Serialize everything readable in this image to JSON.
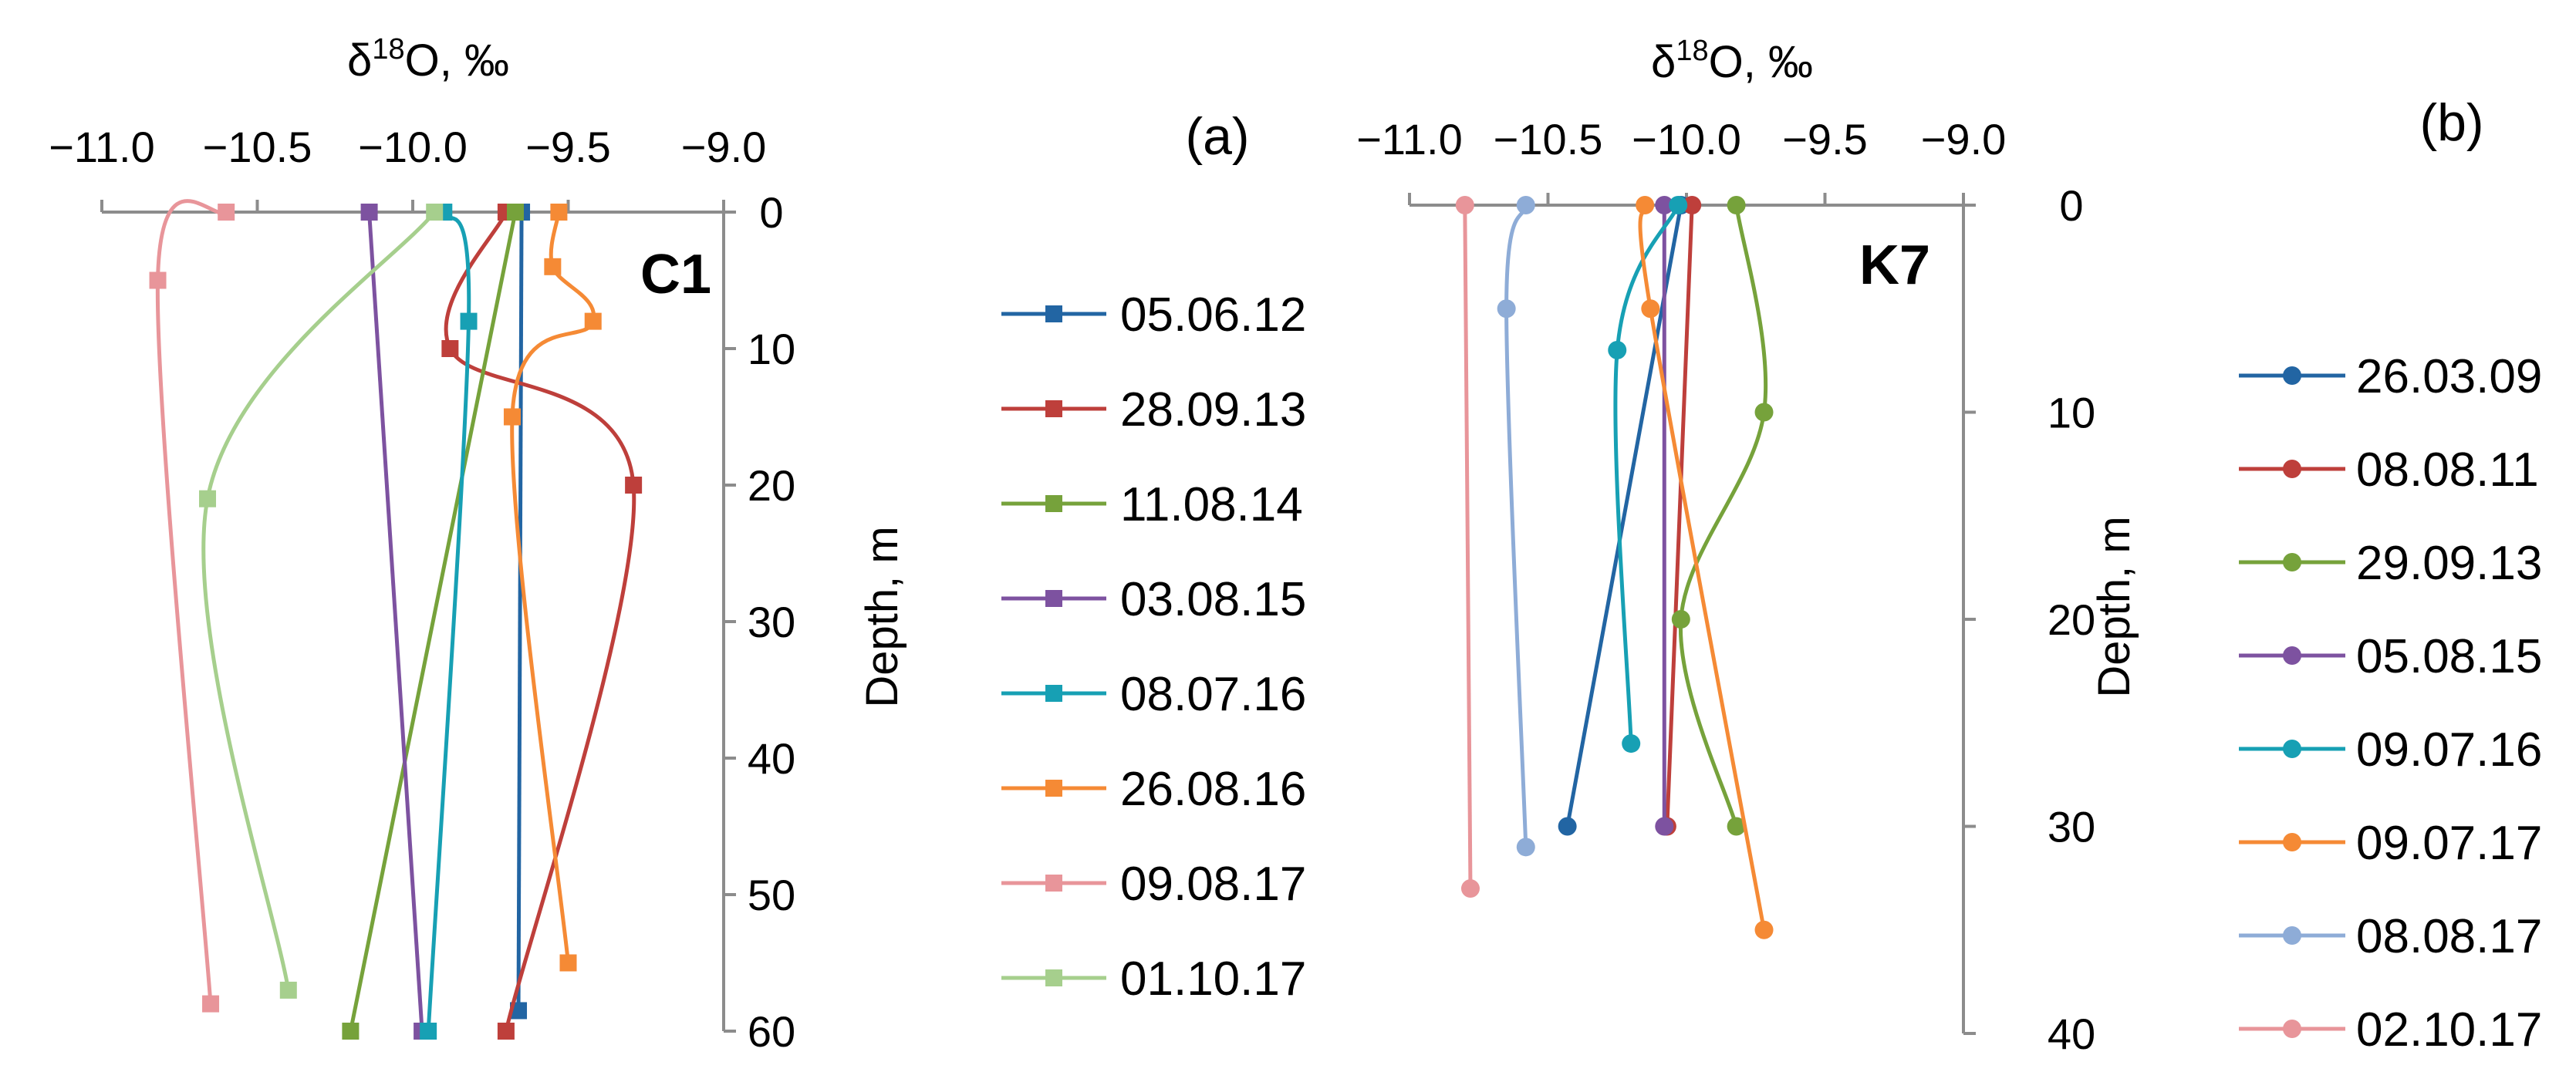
{
  "chart_data": [
    {
      "type": "line",
      "panel_label": "(a)",
      "site_label": "C1",
      "xlabel_base": "δ",
      "xlabel_sup": "18",
      "xlabel_rest": "O, ‰",
      "ylabel": "Depth, m",
      "xlim": [
        -11.0,
        -9.0
      ],
      "ylim": [
        0,
        60
      ],
      "x_ticks": [
        "−11.0",
        "−10.5",
        "−10.0",
        "−9.5",
        "−9.0"
      ],
      "y_ticks": [
        "0",
        "10",
        "20",
        "30",
        "40",
        "50",
        "60"
      ],
      "marker": "square",
      "series": [
        {
          "name": "05.06.12",
          "color": "#2265a3",
          "points": [
            [
              -9.65,
              0
            ],
            [
              -9.66,
              58.5
            ]
          ]
        },
        {
          "name": "28.09.13",
          "color": "#be3f3b",
          "points": [
            [
              -9.7,
              0
            ],
            [
              -9.88,
              10
            ],
            [
              -9.29,
              20
            ],
            [
              -9.7,
              60
            ]
          ]
        },
        {
          "name": "11.08.14",
          "color": "#76a23b",
          "points": [
            [
              -9.67,
              0
            ],
            [
              -10.2,
              60
            ]
          ]
        },
        {
          "name": "03.08.15",
          "color": "#7d52a0",
          "points": [
            [
              -10.14,
              0
            ],
            [
              -9.97,
              60
            ]
          ]
        },
        {
          "name": "08.07.16",
          "color": "#17a0b4",
          "points": [
            [
              -9.9,
              0
            ],
            [
              -9.82,
              8
            ],
            [
              -9.95,
              60
            ]
          ]
        },
        {
          "name": "26.08.16",
          "color": "#f58a35",
          "points": [
            [
              -9.53,
              0
            ],
            [
              -9.55,
              4
            ],
            [
              -9.42,
              8
            ],
            [
              -9.68,
              15
            ],
            [
              -9.5,
              55
            ]
          ]
        },
        {
          "name": "09.08.17",
          "color": "#e8959a",
          "points": [
            [
              -10.6,
              0
            ],
            [
              -10.82,
              5
            ],
            [
              -10.65,
              58
            ]
          ]
        },
        {
          "name": "01.10.17",
          "color": "#a6cf8d",
          "points": [
            [
              -9.93,
              0
            ],
            [
              -10.66,
              21
            ],
            [
              -10.4,
              57
            ]
          ]
        }
      ]
    },
    {
      "type": "line",
      "panel_label": "(b)",
      "site_label": "K7",
      "xlabel_base": "δ",
      "xlabel_sup": "18",
      "xlabel_rest": "O, ‰",
      "ylabel": "Depth, m",
      "xlim": [
        -11.0,
        -9.0
      ],
      "ylim": [
        0,
        40
      ],
      "x_ticks": [
        "−11.0",
        "−10.5",
        "−10.0",
        "−9.5",
        "−9.0"
      ],
      "y_ticks": [
        "0",
        "10",
        "20",
        "30",
        "40"
      ],
      "marker": "circle",
      "series": [
        {
          "name": "26.03.09",
          "color": "#2265a3",
          "points": [
            [
              -10.02,
              0
            ],
            [
              -10.43,
              30
            ]
          ]
        },
        {
          "name": "08.08.11",
          "color": "#be3f3b",
          "points": [
            [
              -9.98,
              0
            ],
            [
              -10.07,
              30
            ]
          ]
        },
        {
          "name": "29.09.13",
          "color": "#76a23b",
          "points": [
            [
              -9.82,
              0
            ],
            [
              -9.72,
              10
            ],
            [
              -10.02,
              20
            ],
            [
              -9.82,
              30
            ]
          ]
        },
        {
          "name": "05.08.15",
          "color": "#7d52a0",
          "points": [
            [
              -10.08,
              0
            ],
            [
              -10.08,
              30
            ]
          ]
        },
        {
          "name": "09.07.16",
          "color": "#17a0b4",
          "points": [
            [
              -10.03,
              0
            ],
            [
              -10.25,
              7
            ],
            [
              -10.2,
              26
            ]
          ]
        },
        {
          "name": "09.07.17",
          "color": "#f58a35",
          "points": [
            [
              -10.15,
              0
            ],
            [
              -10.13,
              5
            ],
            [
              -9.72,
              35
            ]
          ]
        },
        {
          "name": "08.08.17",
          "color": "#8eacd7",
          "points": [
            [
              -10.58,
              0
            ],
            [
              -10.65,
              5
            ],
            [
              -10.58,
              31
            ]
          ]
        },
        {
          "name": "02.10.17",
          "color": "#e8959a",
          "points": [
            [
              -10.8,
              0
            ],
            [
              -10.78,
              33
            ]
          ]
        }
      ]
    }
  ]
}
